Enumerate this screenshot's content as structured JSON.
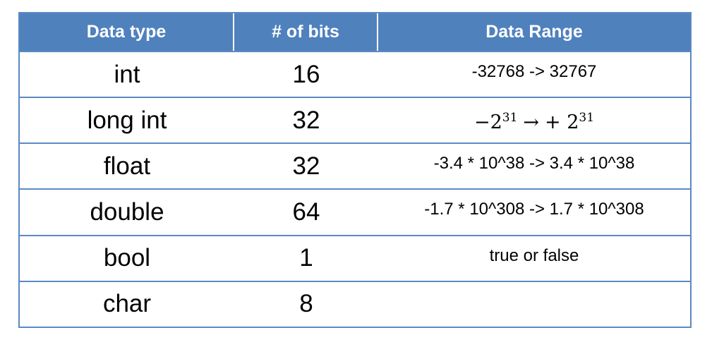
{
  "headers": [
    "Data type",
    "# of bits",
    "Data Range"
  ],
  "rows": [
    {
      "type": "int",
      "bits": "16",
      "range": "-32768 -> 32767"
    },
    {
      "type": "long int",
      "bits": "32",
      "range": {
        "minus": "−",
        "base1": "2",
        "exp1": "31",
        "arrow": "→",
        "plus": "+",
        "base2": "2",
        "exp2": "31"
      }
    },
    {
      "type": "float",
      "bits": "32",
      "range": "-3.4 * 10^38 -> 3.4 * 10^38"
    },
    {
      "type": "double",
      "bits": "64",
      "range": "-1.7 * 10^308 -> 1.7 * 10^308"
    },
    {
      "type": "bool",
      "bits": "1",
      "range": "true or false"
    },
    {
      "type": "char",
      "bits": "8",
      "range": ""
    }
  ]
}
